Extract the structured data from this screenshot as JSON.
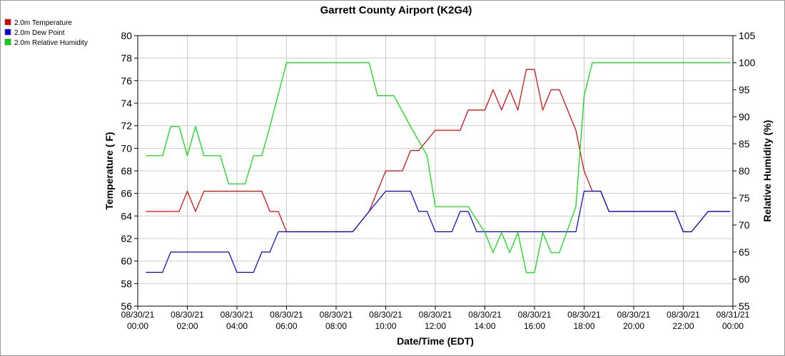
{
  "chart_data": {
    "type": "line",
    "title": "Garrett County Airport (K2G4)",
    "xlabel": "Date/Time (EDT)",
    "ylabel": "Temperature ( F)",
    "y2label": "Relative Humidity (%)",
    "xlim": [
      0,
      24
    ],
    "ylim": [
      56,
      80
    ],
    "y2lim": [
      55,
      105
    ],
    "grid": true,
    "legend_placement": "top-left",
    "x_ticks": [
      {
        "date": "08/30/21",
        "time": "00:00"
      },
      {
        "date": "08/30/21",
        "time": "02:00"
      },
      {
        "date": "08/30/21",
        "time": "04:00"
      },
      {
        "date": "08/30/21",
        "time": "06:00"
      },
      {
        "date": "08/30/21",
        "time": "08:00"
      },
      {
        "date": "08/30/21",
        "time": "10:00"
      },
      {
        "date": "08/30/21",
        "time": "12:00"
      },
      {
        "date": "08/30/21",
        "time": "14:00"
      },
      {
        "date": "08/30/21",
        "time": "16:00"
      },
      {
        "date": "08/30/21",
        "time": "18:00"
      },
      {
        "date": "08/30/21",
        "time": "20:00"
      },
      {
        "date": "08/30/21",
        "time": "22:00"
      },
      {
        "date": "08/31/21",
        "time": "00:00"
      }
    ],
    "y_ticks": [
      "56",
      "58",
      "60",
      "62",
      "64",
      "66",
      "68",
      "70",
      "72",
      "74",
      "76",
      "78",
      "80"
    ],
    "y2_ticks": [
      "55",
      "60",
      "65",
      "70",
      "75",
      "80",
      "85",
      "90",
      "95",
      "100",
      "105"
    ],
    "series": [
      {
        "name": "2.0m Temperature",
        "color": "#e00000",
        "axis": "left",
        "x": [
          0.33,
          1.67,
          2.0,
          2.33,
          2.67,
          3.0,
          4.0,
          5.0,
          5.33,
          5.67,
          6.0,
          7.0,
          8.0,
          8.67,
          9.33,
          10.0,
          10.33,
          10.67,
          11.0,
          11.33,
          12.0,
          12.33,
          12.67,
          13.0,
          13.33,
          14.0,
          14.33,
          14.67,
          15.0,
          15.33,
          15.67,
          16.0,
          16.33,
          16.67,
          17.0,
          17.67,
          18.0,
          18.33,
          18.67,
          19.0,
          20.0,
          21.0,
          21.67,
          22.0,
          22.33,
          23.0,
          23.9
        ],
        "y": [
          64.4,
          64.4,
          66.2,
          64.4,
          66.2,
          66.2,
          66.2,
          66.2,
          64.4,
          64.4,
          62.6,
          62.6,
          62.6,
          62.6,
          64.4,
          68.0,
          68.0,
          68.0,
          69.8,
          69.8,
          71.6,
          71.6,
          71.6,
          71.6,
          73.4,
          73.4,
          75.2,
          73.4,
          75.2,
          73.4,
          77.0,
          77.0,
          73.4,
          75.2,
          75.2,
          71.6,
          68.0,
          66.2,
          66.2,
          64.4,
          64.4,
          64.4,
          64.4,
          62.6,
          62.6,
          64.4,
          64.4
        ]
      },
      {
        "name": "2.0m Dew Point",
        "color": "#0000e0",
        "axis": "left",
        "x": [
          0.33,
          1.0,
          1.33,
          2.0,
          3.0,
          3.67,
          4.0,
          4.33,
          4.67,
          5.0,
          5.33,
          5.67,
          6.0,
          7.0,
          8.0,
          8.67,
          9.33,
          10.0,
          10.67,
          11.0,
          11.33,
          11.67,
          12.0,
          12.33,
          12.67,
          13.0,
          13.33,
          13.67,
          14.0,
          15.0,
          16.0,
          17.0,
          17.67,
          18.0,
          18.33,
          18.67,
          19.0,
          20.0,
          21.0,
          21.67,
          22.0,
          22.33,
          23.0,
          23.9
        ],
        "y": [
          59.0,
          59.0,
          60.8,
          60.8,
          60.8,
          60.8,
          59.0,
          59.0,
          59.0,
          60.8,
          60.8,
          62.6,
          62.6,
          62.6,
          62.6,
          62.6,
          64.4,
          66.2,
          66.2,
          66.2,
          64.4,
          64.4,
          62.6,
          62.6,
          62.6,
          64.4,
          64.4,
          62.6,
          62.6,
          62.6,
          62.6,
          62.6,
          62.6,
          66.2,
          66.2,
          66.2,
          64.4,
          64.4,
          64.4,
          64.4,
          62.6,
          62.6,
          64.4,
          64.4
        ]
      },
      {
        "name": "2.0m Relative Humidity",
        "color": "#00dd00",
        "axis": "right",
        "x": [
          0.33,
          1.0,
          1.33,
          1.67,
          2.0,
          2.33,
          2.67,
          3.33,
          3.67,
          4.33,
          4.67,
          5.0,
          5.33,
          6.0,
          7.0,
          8.0,
          9.0,
          9.33,
          9.67,
          10.0,
          10.33,
          11.0,
          11.67,
          12.0,
          12.67,
          13.0,
          13.33,
          14.0,
          14.33,
          14.67,
          15.0,
          15.33,
          15.67,
          16.0,
          16.33,
          16.67,
          17.0,
          17.67,
          18.0,
          18.33,
          19.0,
          20.0,
          21.0,
          22.0,
          23.0,
          23.9
        ],
        "y": [
          82.8,
          82.8,
          88.2,
          88.2,
          82.8,
          88.2,
          82.8,
          82.8,
          77.6,
          77.6,
          82.8,
          82.8,
          88.2,
          100,
          100,
          100,
          100,
          100,
          93.9,
          93.9,
          93.9,
          88.2,
          82.8,
          73.4,
          73.4,
          73.4,
          73.4,
          68.6,
          64.9,
          68.6,
          64.9,
          68.6,
          61.2,
          61.2,
          68.6,
          64.9,
          64.9,
          73.4,
          93.9,
          100,
          100,
          100,
          100,
          100,
          100,
          100
        ]
      }
    ]
  }
}
